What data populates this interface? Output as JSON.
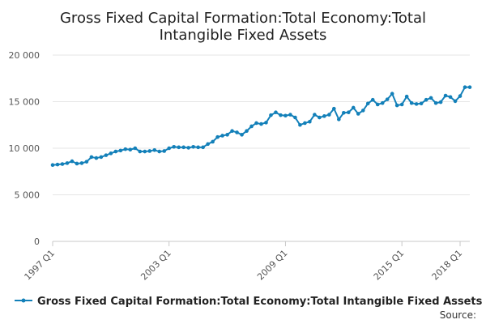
{
  "chart_data": {
    "type": "line",
    "title_lines": [
      "Gross Fixed Capital Formation:Total Economy:Total",
      "Intangible Fixed Assets"
    ],
    "series": [
      {
        "name": "Gross Fixed Capital Formation:Total Economy:Total Intangible Fixed Assets",
        "color": "#1380b9",
        "values": [
          8200,
          8250,
          8300,
          8400,
          8600,
          8350,
          8400,
          8550,
          9050,
          8950,
          9050,
          9250,
          9450,
          9650,
          9750,
          9900,
          9850,
          10000,
          9650,
          9650,
          9700,
          9800,
          9650,
          9700,
          10000,
          10150,
          10100,
          10100,
          10050,
          10150,
          10100,
          10100,
          10450,
          10700,
          11200,
          11350,
          11450,
          11850,
          11700,
          11450,
          11850,
          12350,
          12700,
          12600,
          12750,
          13550,
          13850,
          13550,
          13500,
          13600,
          13300,
          12500,
          12700,
          12850,
          13600,
          13300,
          13450,
          13600,
          14250,
          13100,
          13800,
          13850,
          14350,
          13700,
          14050,
          14800,
          15200,
          14700,
          14850,
          15250,
          15850,
          14600,
          14700,
          15550,
          14850,
          14750,
          14800,
          15200,
          15400,
          14850,
          14950,
          15650,
          15500,
          15050,
          15600,
          16550,
          16550
        ]
      }
    ],
    "x_tick_labels": [
      "1997 Q1",
      "2003 Q1",
      "2009 Q1",
      "2015 Q1",
      "2018 Q1"
    ],
    "x_tick_indices": [
      0,
      24,
      48,
      72,
      84
    ],
    "y_ticks": [
      0,
      5000,
      10000,
      15000,
      20000
    ],
    "y_tick_labels": [
      "0",
      "5 000",
      "10 000",
      "15 000",
      "20 000"
    ],
    "ylim": [
      0,
      20000
    ],
    "grid": true,
    "legend_position": "bottom",
    "source_label": "Source:"
  }
}
